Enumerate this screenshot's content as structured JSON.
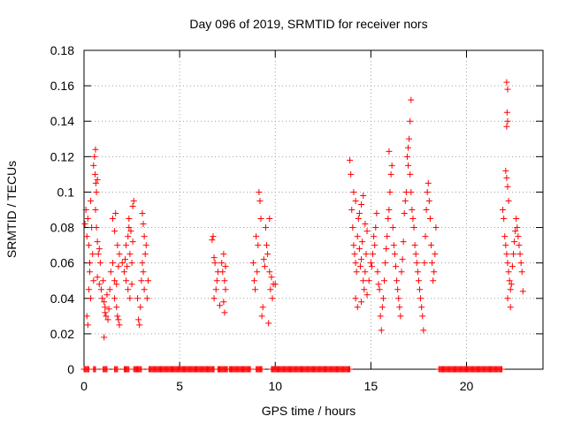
{
  "chart_data": {
    "type": "scatter",
    "title": "Day 096 of 2019, SRMTID for receiver nors",
    "xlabel": "GPS time / hours",
    "ylabel": "SRMTID / TECUs",
    "xlim": [
      0,
      24
    ],
    "ylim": [
      0,
      0.18
    ],
    "x_ticks": [
      0,
      5,
      10,
      15,
      20
    ],
    "x_tick_labels": [
      "0",
      "5",
      "10",
      "15",
      "20"
    ],
    "y_ticks": [
      0,
      0.02,
      0.04,
      0.06,
      0.08,
      0.1,
      0.12,
      0.14,
      0.16,
      0.18
    ],
    "y_tick_labels": [
      "0",
      "0.02",
      "0.04",
      "0.06",
      "0.08",
      "0.1",
      "0.12",
      "0.14",
      "0.16",
      "0.18"
    ],
    "grid": true,
    "marker": "+",
    "marker_color": "#ff0000",
    "series": [
      {
        "name": "SRMTID",
        "points": [
          [
            0.05,
            0.082
          ],
          [
            0.1,
            0.09
          ],
          [
            0.15,
            0.075
          ],
          [
            0.2,
            0.085
          ],
          [
            0.25,
            0.07
          ],
          [
            0.3,
            0.06
          ],
          [
            0.35,
            0.095
          ],
          [
            0.4,
            0.08
          ],
          [
            0.45,
            0.065
          ],
          [
            0.5,
            0.05
          ],
          [
            0.15,
            0.03
          ],
          [
            0.2,
            0.025
          ],
          [
            0.25,
            0.045
          ],
          [
            0.3,
            0.055
          ],
          [
            0.35,
            0.04
          ],
          [
            0.55,
            0.12
          ],
          [
            0.6,
            0.124
          ],
          [
            0.58,
            0.11
          ],
          [
            0.62,
            0.105
          ],
          [
            0.65,
            0.1
          ],
          [
            0.7,
            0.107
          ],
          [
            0.5,
            0.115
          ],
          [
            0.6,
            0.09
          ],
          [
            0.65,
            0.08
          ],
          [
            0.7,
            0.072
          ],
          [
            0.75,
            0.065
          ],
          [
            0.8,
            0.068
          ],
          [
            0.85,
            0.06
          ],
          [
            0.7,
            0.052
          ],
          [
            0.8,
            0.048
          ],
          [
            0.9,
            0.045
          ],
          [
            0.95,
            0.04
          ],
          [
            1.0,
            0.05
          ],
          [
            1.05,
            0.038
          ],
          [
            1.1,
            0.035
          ],
          [
            1.15,
            0.03
          ],
          [
            1.2,
            0.042
          ],
          [
            1.25,
            0.028
          ],
          [
            1.3,
            0.034
          ],
          [
            1.35,
            0.045
          ],
          [
            1.05,
            0.018
          ],
          [
            1.1,
            0.032
          ],
          [
            1.4,
            0.055
          ],
          [
            1.5,
            0.06
          ],
          [
            1.6,
            0.05
          ],
          [
            1.7,
            0.048
          ],
          [
            1.75,
            0.07
          ],
          [
            1.8,
            0.058
          ],
          [
            1.85,
            0.065
          ],
          [
            1.5,
            0.085
          ],
          [
            1.6,
            0.078
          ],
          [
            1.65,
            0.088
          ],
          [
            1.6,
            0.04
          ],
          [
            1.7,
            0.035
          ],
          [
            1.75,
            0.03
          ],
          [
            1.8,
            0.028
          ],
          [
            1.85,
            0.025
          ],
          [
            2.0,
            0.06
          ],
          [
            2.1,
            0.055
          ],
          [
            2.15,
            0.062
          ],
          [
            2.2,
            0.07
          ],
          [
            2.25,
            0.058
          ],
          [
            2.3,
            0.075
          ],
          [
            2.35,
            0.08
          ],
          [
            2.4,
            0.065
          ],
          [
            2.45,
            0.078
          ],
          [
            2.5,
            0.06
          ],
          [
            2.55,
            0.072
          ],
          [
            2.2,
            0.05
          ],
          [
            2.3,
            0.045
          ],
          [
            2.4,
            0.04
          ],
          [
            2.5,
            0.048
          ],
          [
            2.55,
            0.092
          ],
          [
            2.6,
            0.095
          ],
          [
            2.35,
            0.085
          ],
          [
            2.8,
            0.04
          ],
          [
            2.85,
            0.028
          ],
          [
            2.9,
            0.025
          ],
          [
            2.95,
            0.035
          ],
          [
            3.0,
            0.05
          ],
          [
            3.05,
            0.06
          ],
          [
            3.1,
            0.055
          ],
          [
            3.15,
            0.045
          ],
          [
            3.2,
            0.065
          ],
          [
            3.25,
            0.07
          ],
          [
            3.3,
            0.04
          ],
          [
            3.35,
            0.05
          ],
          [
            3.05,
            0.088
          ],
          [
            3.1,
            0.082
          ],
          [
            3.15,
            0.075
          ],
          [
            6.7,
            0.073
          ],
          [
            6.75,
            0.075
          ],
          [
            6.8,
            0.063
          ],
          [
            6.85,
            0.06
          ],
          [
            6.9,
            0.045
          ],
          [
            6.95,
            0.05
          ],
          [
            7.0,
            0.055
          ],
          [
            6.8,
            0.04
          ],
          [
            7.1,
            0.036
          ],
          [
            7.2,
            0.06
          ],
          [
            7.25,
            0.055
          ],
          [
            7.3,
            0.065
          ],
          [
            7.35,
            0.05
          ],
          [
            7.4,
            0.045
          ],
          [
            7.3,
            0.038
          ],
          [
            7.35,
            0.032
          ],
          [
            7.4,
            0.058
          ],
          [
            8.85,
            0.06
          ],
          [
            8.9,
            0.05
          ],
          [
            8.95,
            0.045
          ],
          [
            9.0,
            0.075
          ],
          [
            9.05,
            0.055
          ],
          [
            9.1,
            0.07
          ],
          [
            9.15,
            0.1
          ],
          [
            9.2,
            0.095
          ],
          [
            9.25,
            0.085
          ],
          [
            9.3,
            0.03
          ],
          [
            9.35,
            0.035
          ],
          [
            9.4,
            0.062
          ],
          [
            9.45,
            0.058
          ],
          [
            9.5,
            0.08
          ],
          [
            9.55,
            0.07
          ],
          [
            9.6,
            0.065
          ],
          [
            9.7,
            0.055
          ],
          [
            9.75,
            0.045
          ],
          [
            9.8,
            0.052
          ],
          [
            9.85,
            0.04
          ],
          [
            9.9,
            0.048
          ],
          [
            10.0,
            0.048
          ],
          [
            9.65,
            0.026
          ],
          [
            9.7,
            0.085
          ],
          [
            13.9,
            0.118
          ],
          [
            13.95,
            0.11
          ],
          [
            14.0,
            0.09
          ],
          [
            14.05,
            0.08
          ],
          [
            14.1,
            0.07
          ],
          [
            14.15,
            0.065
          ],
          [
            14.2,
            0.06
          ],
          [
            14.25,
            0.055
          ],
          [
            14.3,
            0.075
          ],
          [
            14.35,
            0.085
          ],
          [
            14.4,
            0.068
          ],
          [
            14.45,
            0.058
          ],
          [
            14.5,
            0.062
          ],
          [
            14.55,
            0.072
          ],
          [
            14.6,
            0.05
          ],
          [
            14.65,
            0.045
          ],
          [
            14.7,
            0.055
          ],
          [
            14.75,
            0.065
          ],
          [
            14.1,
            0.1
          ],
          [
            14.2,
            0.095
          ],
          [
            14.4,
            0.088
          ],
          [
            14.5,
            0.093
          ],
          [
            14.6,
            0.098
          ],
          [
            14.7,
            0.082
          ],
          [
            14.8,
            0.078
          ],
          [
            14.2,
            0.04
          ],
          [
            14.3,
            0.035
          ],
          [
            14.5,
            0.038
          ],
          [
            14.8,
            0.042
          ],
          [
            14.9,
            0.05
          ],
          [
            15.0,
            0.06
          ],
          [
            15.05,
            0.058
          ],
          [
            15.1,
            0.065
          ],
          [
            15.15,
            0.075
          ],
          [
            15.2,
            0.07
          ],
          [
            15.25,
            0.08
          ],
          [
            15.3,
            0.088
          ],
          [
            15.35,
            0.055
          ],
          [
            15.4,
            0.048
          ],
          [
            15.45,
            0.045
          ],
          [
            15.5,
            0.03
          ],
          [
            15.55,
            0.022
          ],
          [
            15.6,
            0.035
          ],
          [
            15.65,
            0.04
          ],
          [
            15.7,
            0.05
          ],
          [
            15.75,
            0.06
          ],
          [
            15.8,
            0.068
          ],
          [
            15.85,
            0.075
          ],
          [
            15.9,
            0.085
          ],
          [
            15.95,
            0.09
          ],
          [
            16.0,
            0.1
          ],
          [
            16.05,
            0.11
          ],
          [
            16.1,
            0.115
          ],
          [
            15.95,
            0.123
          ],
          [
            16.15,
            0.08
          ],
          [
            16.2,
            0.07
          ],
          [
            16.25,
            0.065
          ],
          [
            16.3,
            0.058
          ],
          [
            16.35,
            0.05
          ],
          [
            16.4,
            0.045
          ],
          [
            16.45,
            0.04
          ],
          [
            16.5,
            0.035
          ],
          [
            16.55,
            0.03
          ],
          [
            16.6,
            0.055
          ],
          [
            16.65,
            0.062
          ],
          [
            16.7,
            0.072
          ],
          [
            16.75,
            0.088
          ],
          [
            16.8,
            0.095
          ],
          [
            16.85,
            0.1
          ],
          [
            16.9,
            0.12
          ],
          [
            16.95,
            0.125
          ],
          [
            17.0,
            0.13
          ],
          [
            17.05,
            0.14
          ],
          [
            17.1,
            0.152
          ],
          [
            16.95,
            0.115
          ],
          [
            17.05,
            0.11
          ],
          [
            17.1,
            0.1
          ],
          [
            17.15,
            0.09
          ],
          [
            17.2,
            0.085
          ],
          [
            17.25,
            0.08
          ],
          [
            17.3,
            0.07
          ],
          [
            17.35,
            0.065
          ],
          [
            17.4,
            0.06
          ],
          [
            17.45,
            0.055
          ],
          [
            17.5,
            0.05
          ],
          [
            17.55,
            0.045
          ],
          [
            17.6,
            0.04
          ],
          [
            17.65,
            0.035
          ],
          [
            17.7,
            0.03
          ],
          [
            17.75,
            0.022
          ],
          [
            17.8,
            0.06
          ],
          [
            17.85,
            0.075
          ],
          [
            17.9,
            0.09
          ],
          [
            17.95,
            0.1
          ],
          [
            18.0,
            0.105
          ],
          [
            18.05,
            0.095
          ],
          [
            18.1,
            0.085
          ],
          [
            18.15,
            0.07
          ],
          [
            18.2,
            0.06
          ],
          [
            18.25,
            0.05
          ],
          [
            18.3,
            0.055
          ],
          [
            18.35,
            0.065
          ],
          [
            18.4,
            0.08
          ],
          [
            21.9,
            0.09
          ],
          [
            21.95,
            0.085
          ],
          [
            22.0,
            0.075
          ],
          [
            22.05,
            0.07
          ],
          [
            22.1,
            0.065
          ],
          [
            22.15,
            0.06
          ],
          [
            22.2,
            0.055
          ],
          [
            22.25,
            0.05
          ],
          [
            22.3,
            0.045
          ],
          [
            22.35,
            0.048
          ],
          [
            22.4,
            0.058
          ],
          [
            22.45,
            0.065
          ],
          [
            22.5,
            0.072
          ],
          [
            22.55,
            0.078
          ],
          [
            22.6,
            0.085
          ],
          [
            22.65,
            0.08
          ],
          [
            22.7,
            0.075
          ],
          [
            22.75,
            0.07
          ],
          [
            22.8,
            0.065
          ],
          [
            22.85,
            0.06
          ],
          [
            22.9,
            0.055
          ],
          [
            22.1,
            0.162
          ],
          [
            22.15,
            0.158
          ],
          [
            22.12,
            0.145
          ],
          [
            22.15,
            0.14
          ],
          [
            22.1,
            0.137
          ],
          [
            22.05,
            0.112
          ],
          [
            22.1,
            0.108
          ],
          [
            22.15,
            0.103
          ],
          [
            22.2,
            0.095
          ],
          [
            22.15,
            0.04
          ],
          [
            22.3,
            0.035
          ],
          [
            22.95,
            0.044
          ]
        ]
      }
    ],
    "zero_bands": [
      [
        0.0,
        0.25
      ],
      [
        0.5,
        0.6
      ],
      [
        1.0,
        1.2
      ],
      [
        1.6,
        1.75
      ],
      [
        2.1,
        2.35
      ],
      [
        2.6,
        3.0
      ],
      [
        3.4,
        6.8
      ],
      [
        7.0,
        7.5
      ],
      [
        7.6,
        8.7
      ],
      [
        9.0,
        9.3
      ],
      [
        9.8,
        13.9
      ],
      [
        18.55,
        21.85
      ]
    ]
  }
}
